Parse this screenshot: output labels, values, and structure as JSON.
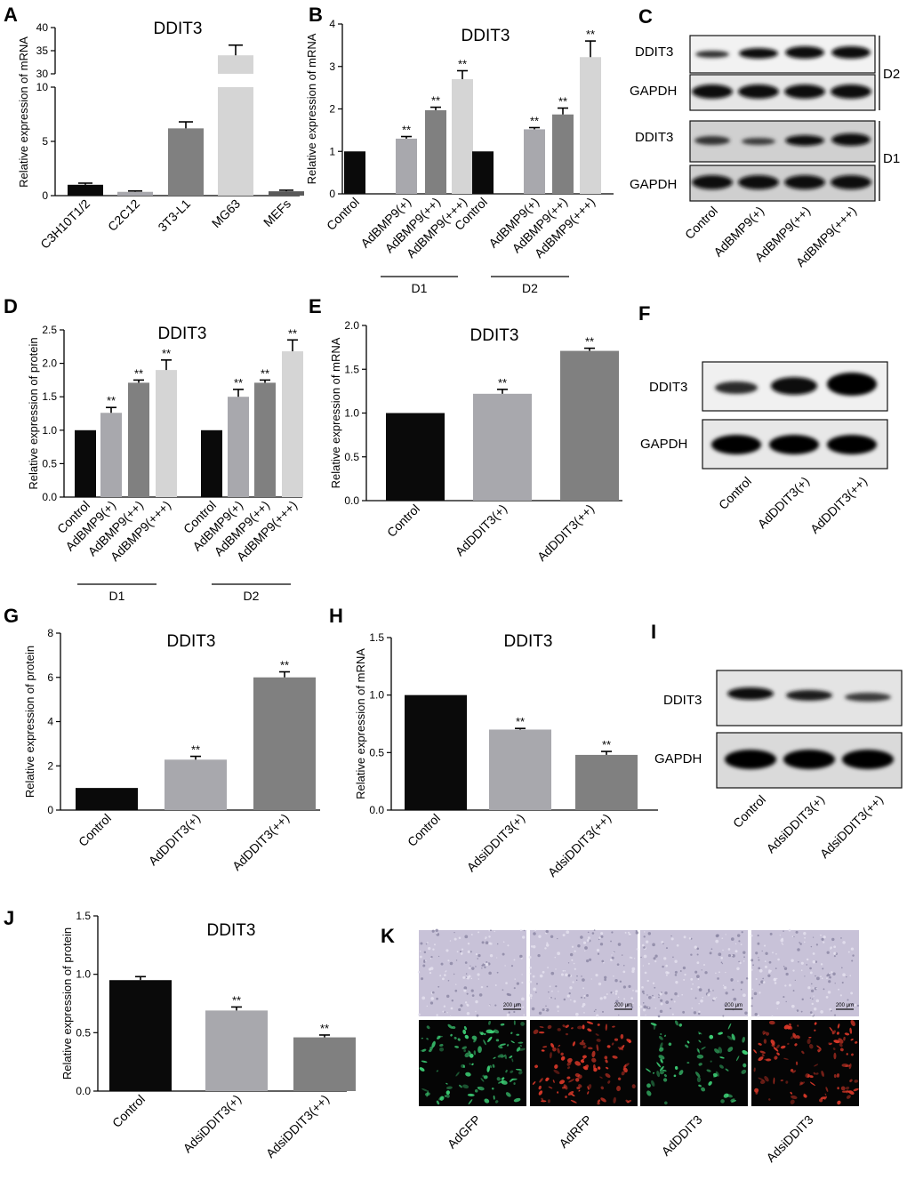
{
  "panel_letters": [
    "A",
    "B",
    "C",
    "D",
    "E",
    "F",
    "G",
    "H",
    "I",
    "J",
    "K"
  ],
  "colors": {
    "black": "#0a0a0a",
    "light_gray": "#a8a8ad",
    "mid_gray": "#808080",
    "pale_gray": "#d5d5d5",
    "dark_gray": "#5a5a5a"
  },
  "chart_data": [
    {
      "panel": "A",
      "type": "bar",
      "title": "DDIT3",
      "ylabel": "Relative expression of mRNA",
      "categories": [
        "C3H10T1/2",
        "C2C12",
        "3T3-L1",
        "MG63",
        "MEFs"
      ],
      "values": [
        1.0,
        0.35,
        6.2,
        34.0,
        0.4
      ],
      "errors": [
        0.15,
        0.08,
        0.6,
        2.2,
        0.1
      ],
      "y_axis_broken": true,
      "ylim_lower": [
        0,
        10
      ],
      "ylim_upper": [
        30,
        40
      ],
      "yticks": [
        "0",
        "5",
        "10",
        "30",
        "35",
        "40"
      ]
    },
    {
      "panel": "B",
      "type": "bar",
      "title": "DDIT3",
      "ylabel": "Relative expression of mRNA",
      "categories": [
        "Control",
        "AdBMP9(+)",
        "AdBMP9(++)",
        "AdBMP9(+++)",
        "Control",
        "AdBMP9(+)",
        "AdBMP9(++)",
        "AdBMP9(+++)"
      ],
      "values": [
        1.0,
        1.3,
        1.97,
        2.7,
        1.0,
        1.52,
        1.87,
        3.22
      ],
      "errors": [
        0,
        0.05,
        0.07,
        0.2,
        0,
        0.04,
        0.15,
        0.38
      ],
      "significance": [
        "",
        "**",
        "**",
        "**",
        "",
        "**",
        "**",
        "**"
      ],
      "groups": [
        "D1",
        "D2"
      ],
      "ylim": [
        0,
        4
      ],
      "yticks": [
        "0",
        "1",
        "2",
        "3",
        "4"
      ]
    },
    {
      "panel": "D",
      "type": "bar",
      "title": "DDIT3",
      "ylabel": "Relative expression of protein",
      "categories": [
        "Control",
        "AdBMP9(+)",
        "AdBMP9(++)",
        "AdBMP9(+++)",
        "Control",
        "AdBMP9(+)",
        "AdBMP9(++)",
        "AdBMP9(+++)"
      ],
      "values": [
        1.0,
        1.26,
        1.71,
        1.9,
        1.0,
        1.5,
        1.71,
        2.18
      ],
      "errors": [
        0,
        0.08,
        0.04,
        0.15,
        0,
        0.11,
        0.04,
        0.17
      ],
      "significance": [
        "",
        "**",
        "**",
        "**",
        "",
        "**",
        "**",
        "**"
      ],
      "groups": [
        "D1",
        "D2"
      ],
      "ylim": [
        0,
        2.5
      ],
      "yticks": [
        "0.0",
        "0.5",
        "1.0",
        "1.5",
        "2.0",
        "2.5"
      ]
    },
    {
      "panel": "E",
      "type": "bar",
      "title": "DDIT3",
      "ylabel": "Relative expression of mRNA",
      "categories": [
        "Control",
        "AdDDIT3(+)",
        "AdDDIT3(++)"
      ],
      "values": [
        1.0,
        1.22,
        1.71
      ],
      "errors": [
        0,
        0.05,
        0.03
      ],
      "significance": [
        "",
        "**",
        "**"
      ],
      "ylim": [
        0,
        2.0
      ],
      "yticks": [
        "0.0",
        "0.5",
        "1.0",
        "1.5",
        "2.0"
      ]
    },
    {
      "panel": "G",
      "type": "bar",
      "title": "DDIT3",
      "ylabel": "Relative expression of protein",
      "categories": [
        "Control",
        "AdDDIT3(+)",
        "AdDDIT3(++)"
      ],
      "values": [
        1.0,
        2.28,
        6.0
      ],
      "errors": [
        0,
        0.15,
        0.25
      ],
      "significance": [
        "",
        "**",
        "**"
      ],
      "ylim": [
        0,
        8
      ],
      "yticks": [
        "0",
        "2",
        "4",
        "6",
        "8"
      ]
    },
    {
      "panel": "H",
      "type": "bar",
      "title": "DDIT3",
      "ylabel": "Relative expression of mRNA",
      "categories": [
        "Control",
        "AdsiDDIT3(+)",
        "AdsiDDIT3(++)"
      ],
      "values": [
        1.0,
        0.7,
        0.48
      ],
      "errors": [
        0,
        0.01,
        0.03
      ],
      "significance": [
        "",
        "**",
        "**"
      ],
      "ylim": [
        0,
        1.5
      ],
      "yticks": [
        "0.0",
        "0.5",
        "1.0",
        "1.5"
      ]
    },
    {
      "panel": "J",
      "type": "bar",
      "title": "DDIT3",
      "ylabel": "Relative expression of protein",
      "categories": [
        "Control",
        "AdsiDDIT3(+)",
        "AdsiDDIT3(++)"
      ],
      "values": [
        0.95,
        0.69,
        0.46
      ],
      "errors": [
        0.03,
        0.03,
        0.02
      ],
      "significance": [
        "",
        "**",
        "**"
      ],
      "ylim": [
        0,
        1.5
      ],
      "yticks": [
        "0.0",
        "0.5",
        "1.0",
        "1.5"
      ]
    }
  ],
  "blots": {
    "C": {
      "rows": [
        "DDIT3",
        "GAPDH",
        "DDIT3",
        "GAPDH"
      ],
      "groups": [
        "D2",
        "D1"
      ],
      "lanes": [
        "Control",
        "AdBMP9(+)",
        "AdBMP9(++)",
        "AdBMP9(+++)"
      ]
    },
    "F": {
      "rows": [
        "DDIT3",
        "GAPDH"
      ],
      "lanes": [
        "Control",
        "AdDDIT3(+)",
        "AdDDIT3(++)"
      ]
    },
    "I": {
      "rows": [
        "DDIT3",
        "GAPDH"
      ],
      "lanes": [
        "Control",
        "AdsiDDIT3(+)",
        "AdsiDDIT3(++)"
      ]
    }
  },
  "micrographs": {
    "labels": [
      "AdGFP",
      "AdRFP",
      "AdDDIT3",
      "AdsiDDIT3"
    ],
    "scale_bar": "200 μm",
    "fluorescence": [
      "green",
      "red",
      "green",
      "red"
    ]
  }
}
